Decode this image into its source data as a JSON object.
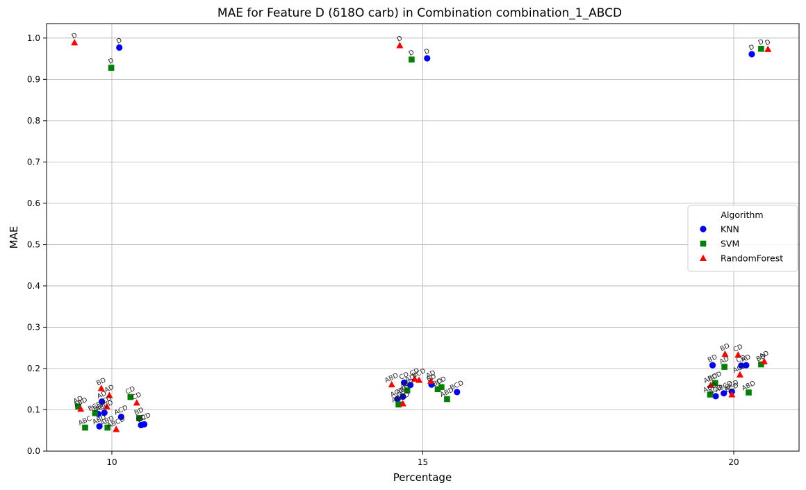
{
  "chart_data": {
    "type": "scatter",
    "title": "MAE for Feature D (δ18O carb) in Combination combination_1_ABCD",
    "xlabel": "Percentage",
    "ylabel": "MAE",
    "xlim": [
      8.95,
      21.05
    ],
    "ylim": [
      0.0,
      1.035
    ],
    "x_ticks": [
      10,
      15,
      20
    ],
    "y_ticks": [
      0.0,
      0.1,
      0.2,
      0.3,
      0.4,
      0.5,
      0.6,
      0.7,
      0.8,
      0.9,
      1.0
    ],
    "grid": true,
    "legend": {
      "title": "Algorithm",
      "placement": "center-right",
      "entries": [
        "KNN",
        "SVM",
        "RandomForest"
      ]
    },
    "series": [
      {
        "name": "KNN",
        "marker": "circle",
        "color": "#0000ff",
        "points": [
          {
            "x": 10.12,
            "y": 0.977,
            "label": "D"
          },
          {
            "x": 9.84,
            "y": 0.12,
            "label": "AD"
          },
          {
            "x": 9.78,
            "y": 0.09,
            "label": "BD"
          },
          {
            "x": 9.88,
            "y": 0.093,
            "label": "ABCD"
          },
          {
            "x": 9.8,
            "y": 0.06,
            "label": "ABD"
          },
          {
            "x": 10.15,
            "y": 0.083,
            "label": "ACD"
          },
          {
            "x": 10.47,
            "y": 0.063,
            "label": "CD"
          },
          {
            "x": 10.52,
            "y": 0.065,
            "label": "BCD"
          },
          {
            "x": 15.07,
            "y": 0.951,
            "label": "D"
          },
          {
            "x": 14.59,
            "y": 0.126,
            "label": "ACD"
          },
          {
            "x": 14.68,
            "y": 0.132,
            "label": "ABD"
          },
          {
            "x": 14.7,
            "y": 0.166,
            "label": "CD"
          },
          {
            "x": 14.8,
            "y": 0.16,
            "label": "AD"
          },
          {
            "x": 15.14,
            "y": 0.161,
            "label": "BD"
          },
          {
            "x": 15.55,
            "y": 0.143,
            "label": "BCD"
          },
          {
            "x": 20.29,
            "y": 0.961,
            "label": "D"
          },
          {
            "x": 19.66,
            "y": 0.208,
            "label": "BD"
          },
          {
            "x": 19.71,
            "y": 0.133,
            "label": "ACD"
          },
          {
            "x": 19.84,
            "y": 0.14,
            "label": "ABCD"
          },
          {
            "x": 19.97,
            "y": 0.144,
            "label": "BCD"
          },
          {
            "x": 20.12,
            "y": 0.207,
            "label": "CD"
          },
          {
            "x": 20.2,
            "y": 0.208,
            "label": "AD"
          }
        ]
      },
      {
        "name": "SVM",
        "marker": "square",
        "color": "#008000",
        "points": [
          {
            "x": 9.99,
            "y": 0.928,
            "label": "D"
          },
          {
            "x": 9.46,
            "y": 0.108,
            "label": "AD"
          },
          {
            "x": 9.57,
            "y": 0.057,
            "label": "ABC"
          },
          {
            "x": 9.73,
            "y": 0.092,
            "label": "BCD"
          },
          {
            "x": 9.93,
            "y": 0.057,
            "label": "ABD"
          },
          {
            "x": 10.3,
            "y": 0.131,
            "label": "CD"
          },
          {
            "x": 10.44,
            "y": 0.08,
            "label": "BD"
          },
          {
            "x": 14.82,
            "y": 0.948,
            "label": "D"
          },
          {
            "x": 14.61,
            "y": 0.113,
            "label": "ACD"
          },
          {
            "x": 14.75,
            "y": 0.147,
            "label": "ABD"
          },
          {
            "x": 15.24,
            "y": 0.15,
            "label": "BD"
          },
          {
            "x": 15.3,
            "y": 0.155,
            "label": "CD"
          },
          {
            "x": 15.39,
            "y": 0.126,
            "label": "ABD"
          },
          {
            "x": 20.44,
            "y": 0.974,
            "label": "D"
          },
          {
            "x": 19.62,
            "y": 0.137,
            "label": "ABD"
          },
          {
            "x": 19.7,
            "y": 0.165,
            "label": "BCD"
          },
          {
            "x": 19.85,
            "y": 0.204,
            "label": "AD"
          },
          {
            "x": 20.24,
            "y": 0.142,
            "label": "ABD"
          },
          {
            "x": 20.44,
            "y": 0.21,
            "label": "BD"
          }
        ]
      },
      {
        "name": "RandomForest",
        "marker": "triangle",
        "color": "#ff0000",
        "points": [
          {
            "x": 9.4,
            "y": 0.989,
            "label": "D"
          },
          {
            "x": 9.5,
            "y": 0.102,
            "label": "ABD"
          },
          {
            "x": 9.83,
            "y": 0.152,
            "label": "BD"
          },
          {
            "x": 9.92,
            "y": 0.108,
            "label": "CD"
          },
          {
            "x": 9.96,
            "y": 0.135,
            "label": "AD"
          },
          {
            "x": 10.07,
            "y": 0.053,
            "label": "ABCD"
          },
          {
            "x": 10.4,
            "y": 0.117,
            "label": "CD"
          },
          {
            "x": 14.63,
            "y": 0.982,
            "label": "D"
          },
          {
            "x": 14.5,
            "y": 0.161,
            "label": "ABD"
          },
          {
            "x": 14.68,
            "y": 0.115,
            "label": "ACD"
          },
          {
            "x": 14.87,
            "y": 0.175,
            "label": "CD"
          },
          {
            "x": 14.94,
            "y": 0.172,
            "label": "BCD"
          },
          {
            "x": 15.13,
            "y": 0.17,
            "label": "AD"
          },
          {
            "x": 20.55,
            "y": 0.973,
            "label": "D"
          },
          {
            "x": 19.63,
            "y": 0.16,
            "label": "ABD"
          },
          {
            "x": 19.86,
            "y": 0.235,
            "label": "BD"
          },
          {
            "x": 19.97,
            "y": 0.137,
            "label": "BCD"
          },
          {
            "x": 20.07,
            "y": 0.233,
            "label": "CD"
          },
          {
            "x": 20.1,
            "y": 0.185,
            "label": "ACD"
          },
          {
            "x": 20.49,
            "y": 0.217,
            "label": "AD"
          }
        ]
      }
    ]
  }
}
